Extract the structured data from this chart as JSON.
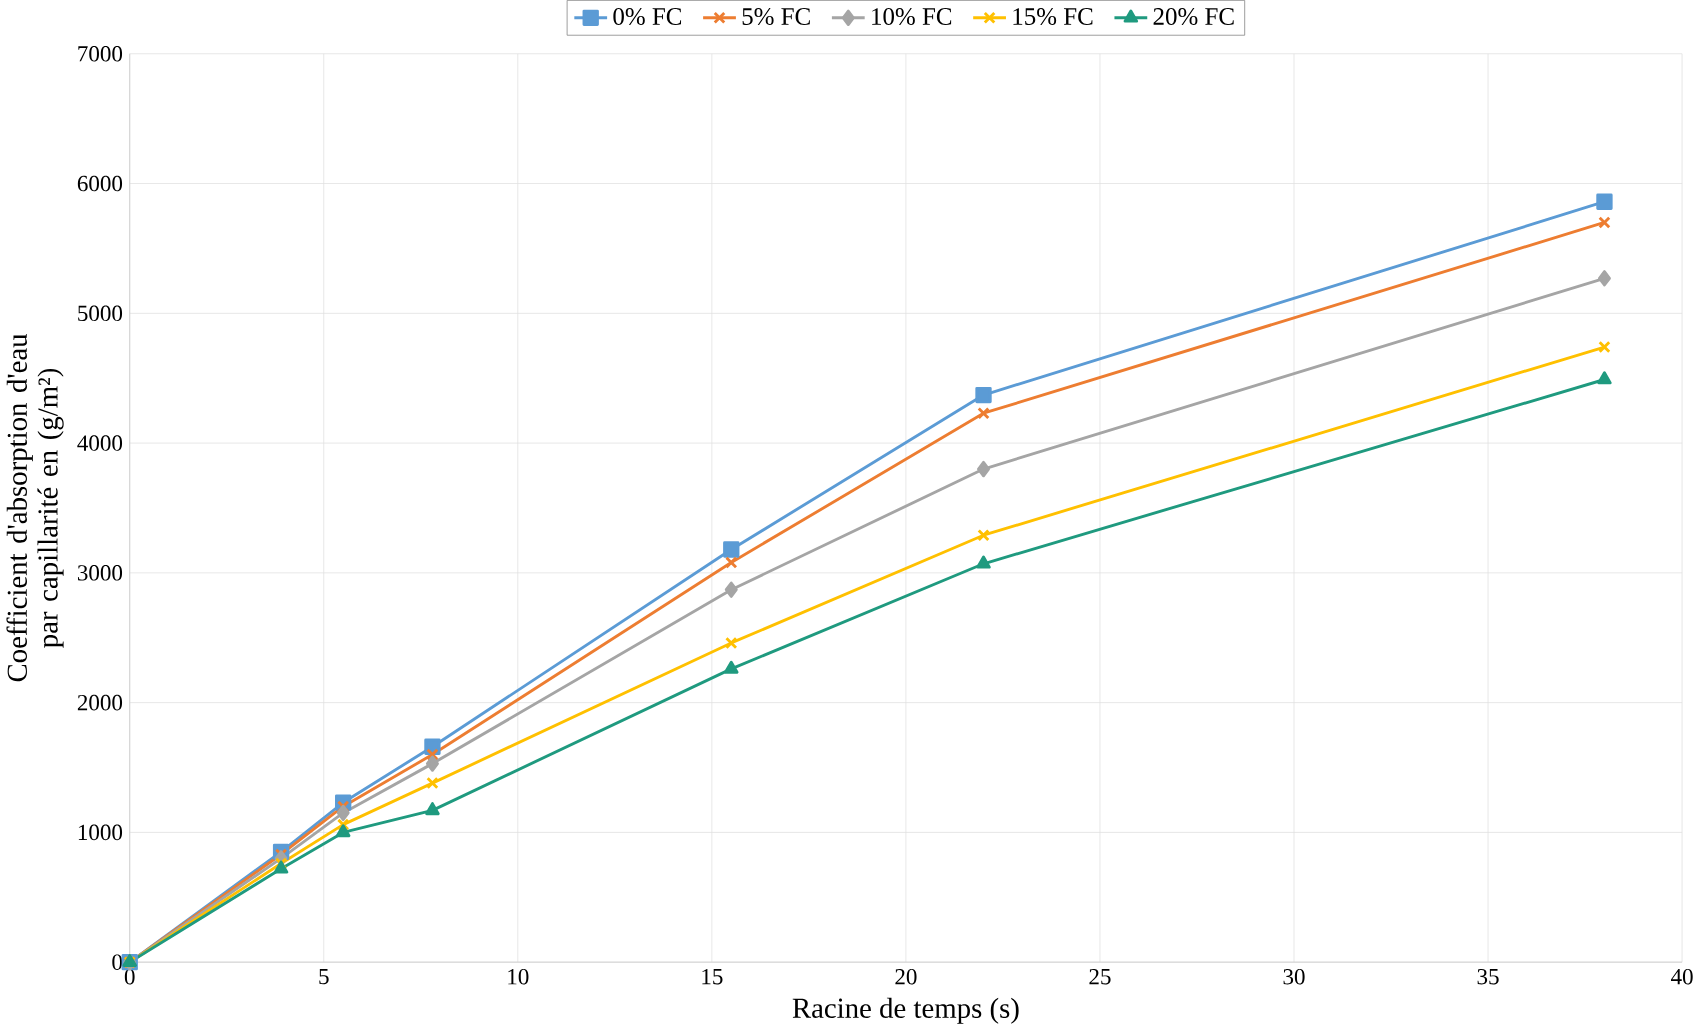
{
  "chart_data": {
    "type": "line",
    "xlabel": "Racine de temps (s)",
    "ylabel": "Coefficient d'absorption d'eau par capillarité en (g/m²)",
    "x": [
      0,
      3.9,
      5.5,
      7.8,
      15.5,
      22,
      38
    ],
    "xlim": [
      0,
      40
    ],
    "xticks": [
      0,
      5,
      10,
      15,
      20,
      25,
      30,
      35,
      40
    ],
    "ylim": [
      0,
      7000
    ],
    "yticks": [
      0,
      1000,
      2000,
      3000,
      4000,
      5000,
      6000,
      7000
    ],
    "grid": true,
    "legend": "top",
    "series": [
      {
        "name": "0% FC",
        "color": "#5b9bd5",
        "marker": "square",
        "values": [
          0,
          850,
          1230,
          1660,
          3180,
          4370,
          5860
        ]
      },
      {
        "name": "5% FC",
        "color": "#ed7d31",
        "marker": "cross",
        "values": [
          0,
          830,
          1200,
          1600,
          3080,
          4230,
          5700
        ]
      },
      {
        "name": "10% FC",
        "color": "#a5a5a5",
        "marker": "diamond",
        "values": [
          0,
          800,
          1150,
          1530,
          2870,
          3800,
          5270
        ]
      },
      {
        "name": "15% FC",
        "color": "#ffc000",
        "marker": "cross",
        "values": [
          0,
          760,
          1060,
          1380,
          2460,
          3290,
          4740
        ]
      },
      {
        "name": "20% FC",
        "color": "#1f9a7f",
        "marker": "triangle",
        "values": [
          0,
          720,
          1000,
          1170,
          2260,
          3070,
          4490
        ]
      }
    ]
  }
}
